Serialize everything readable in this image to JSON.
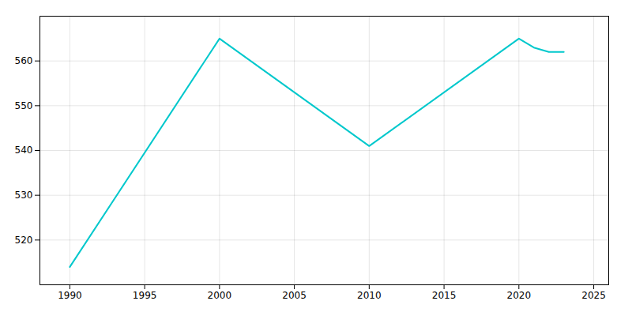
{
  "chart_data": {
    "type": "line",
    "x": [
      1990,
      2000,
      2010,
      2020,
      2021,
      2022,
      2023
    ],
    "values": [
      514,
      565,
      541,
      565,
      563,
      562,
      562
    ],
    "color": "#00c8cc",
    "xlim": [
      1988,
      2026
    ],
    "ylim": [
      510,
      570
    ],
    "xticks": [
      1990,
      1995,
      2000,
      2005,
      2010,
      2015,
      2020,
      2025
    ],
    "yticks": [
      520,
      530,
      540,
      550,
      560
    ],
    "grid": true
  }
}
